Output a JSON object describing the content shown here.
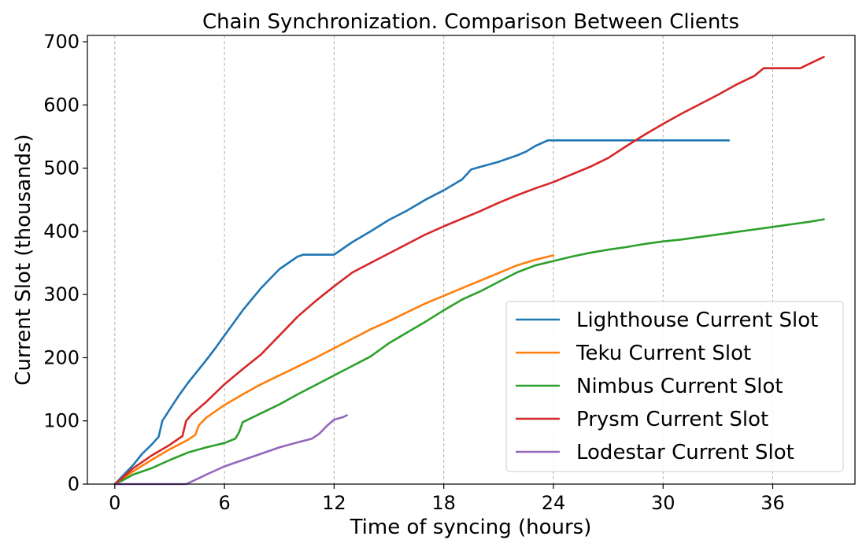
{
  "chart_data": {
    "type": "line",
    "title": "Chain Synchronization. Comparison Between Clients",
    "xlabel": "Time of syncing (hours)",
    "ylabel": "Current Slot (thousands)",
    "xlim": [
      -1.5,
      40.5
    ],
    "ylim": [
      0,
      710
    ],
    "xticks": [
      0,
      6,
      12,
      18,
      24,
      30,
      36
    ],
    "yticks": [
      0,
      100,
      200,
      300,
      400,
      500,
      600,
      700
    ],
    "grid": "vertical dashed",
    "legend_position": "lower-right",
    "series": [
      {
        "name": "Lighthouse Current Slot",
        "color": "#1f77b4",
        "points": [
          [
            0,
            0
          ],
          [
            0.5,
            15
          ],
          [
            1.0,
            30
          ],
          [
            1.5,
            48
          ],
          [
            2.0,
            62
          ],
          [
            2.4,
            75
          ],
          [
            2.6,
            100
          ],
          [
            3.0,
            118
          ],
          [
            3.5,
            140
          ],
          [
            4.0,
            160
          ],
          [
            4.5,
            178
          ],
          [
            5.0,
            196
          ],
          [
            5.5,
            215
          ],
          [
            6.0,
            235
          ],
          [
            7.0,
            275
          ],
          [
            8.0,
            310
          ],
          [
            9.0,
            340
          ],
          [
            10.0,
            360
          ],
          [
            10.3,
            363
          ],
          [
            12.0,
            363
          ],
          [
            12.5,
            373
          ],
          [
            13.0,
            383
          ],
          [
            14.0,
            400
          ],
          [
            15.0,
            418
          ],
          [
            16.0,
            433
          ],
          [
            17.0,
            450
          ],
          [
            18.0,
            465
          ],
          [
            19.0,
            482
          ],
          [
            19.5,
            498
          ],
          [
            20.0,
            502
          ],
          [
            21.0,
            510
          ],
          [
            22.0,
            520
          ],
          [
            22.5,
            526
          ],
          [
            23.0,
            535
          ],
          [
            23.7,
            544
          ],
          [
            26.0,
            544
          ],
          [
            30.0,
            544
          ],
          [
            33.6,
            544
          ]
        ]
      },
      {
        "name": "Teku Current Slot",
        "color": "#ff7f0e",
        "points": [
          [
            0,
            0
          ],
          [
            0.5,
            10
          ],
          [
            1.0,
            20
          ],
          [
            2.0,
            38
          ],
          [
            3.0,
            55
          ],
          [
            4.0,
            70
          ],
          [
            4.4,
            78
          ],
          [
            4.6,
            93
          ],
          [
            5.0,
            105
          ],
          [
            6.0,
            125
          ],
          [
            7.0,
            142
          ],
          [
            8.0,
            158
          ],
          [
            9.0,
            172
          ],
          [
            10.0,
            186
          ],
          [
            11.0,
            200
          ],
          [
            12.0,
            215
          ],
          [
            13.0,
            230
          ],
          [
            14.0,
            245
          ],
          [
            15.0,
            258
          ],
          [
            16.0,
            272
          ],
          [
            17.0,
            286
          ],
          [
            18.0,
            298
          ],
          [
            19.0,
            310
          ],
          [
            20.0,
            322
          ],
          [
            21.0,
            334
          ],
          [
            22.0,
            346
          ],
          [
            23.0,
            355
          ],
          [
            24.0,
            362
          ]
        ]
      },
      {
        "name": "Nimbus Current Slot",
        "color": "#2ca02c",
        "points": [
          [
            0,
            0
          ],
          [
            0.5,
            7
          ],
          [
            1.0,
            15
          ],
          [
            2.0,
            25
          ],
          [
            3.0,
            38
          ],
          [
            4.0,
            50
          ],
          [
            5.0,
            58
          ],
          [
            6.0,
            65
          ],
          [
            6.6,
            72
          ],
          [
            6.8,
            82
          ],
          [
            7.0,
            98
          ],
          [
            7.5,
            105
          ],
          [
            8.0,
            112
          ],
          [
            9.0,
            126
          ],
          [
            10.0,
            142
          ],
          [
            11.0,
            157
          ],
          [
            12.0,
            172
          ],
          [
            13.0,
            187
          ],
          [
            14.0,
            202
          ],
          [
            15.0,
            223
          ],
          [
            16.0,
            240
          ],
          [
            17.0,
            257
          ],
          [
            18.0,
            275
          ],
          [
            19.0,
            292
          ],
          [
            20.0,
            305
          ],
          [
            21.0,
            320
          ],
          [
            22.0,
            335
          ],
          [
            23.0,
            346
          ],
          [
            24.0,
            353
          ],
          [
            25.0,
            360
          ],
          [
            26.0,
            366
          ],
          [
            27.0,
            371
          ],
          [
            28.0,
            375
          ],
          [
            29.0,
            380
          ],
          [
            30.0,
            384
          ],
          [
            31.0,
            387
          ],
          [
            32.0,
            391
          ],
          [
            33.0,
            395
          ],
          [
            34.0,
            399
          ],
          [
            35.0,
            403
          ],
          [
            36.0,
            407
          ],
          [
            37.0,
            411
          ],
          [
            38.0,
            415
          ],
          [
            38.8,
            419
          ]
        ]
      },
      {
        "name": "Prysm Current Slot",
        "color": "#d62728",
        "points": [
          [
            0,
            0
          ],
          [
            0.5,
            12
          ],
          [
            1.0,
            25
          ],
          [
            2.0,
            45
          ],
          [
            3.0,
            62
          ],
          [
            3.7,
            76
          ],
          [
            3.9,
            100
          ],
          [
            4.2,
            110
          ],
          [
            5.0,
            130
          ],
          [
            6.0,
            158
          ],
          [
            7.0,
            182
          ],
          [
            8.0,
            205
          ],
          [
            9.0,
            235
          ],
          [
            10.0,
            265
          ],
          [
            11.0,
            290
          ],
          [
            12.0,
            313
          ],
          [
            13.0,
            335
          ],
          [
            14.0,
            350
          ],
          [
            15.0,
            365
          ],
          [
            16.0,
            380
          ],
          [
            17.0,
            395
          ],
          [
            18.0,
            408
          ],
          [
            19.0,
            420
          ],
          [
            20.0,
            432
          ],
          [
            21.0,
            445
          ],
          [
            22.0,
            457
          ],
          [
            23.0,
            468
          ],
          [
            24.0,
            478
          ],
          [
            25.0,
            490
          ],
          [
            26.0,
            502
          ],
          [
            27.0,
            516
          ],
          [
            28.0,
            535
          ],
          [
            29.0,
            553
          ],
          [
            30.0,
            570
          ],
          [
            31.0,
            586
          ],
          [
            32.0,
            601
          ],
          [
            33.0,
            616
          ],
          [
            34.0,
            632
          ],
          [
            35.0,
            646
          ],
          [
            35.5,
            658
          ],
          [
            37.5,
            658
          ],
          [
            38.0,
            665
          ],
          [
            38.8,
            676
          ]
        ]
      },
      {
        "name": "Lodestar Current Slot",
        "color": "#9467bd",
        "points": [
          [
            0,
            0
          ],
          [
            2.0,
            0
          ],
          [
            3.9,
            0
          ],
          [
            4.5,
            8
          ],
          [
            5.0,
            15
          ],
          [
            6.0,
            28
          ],
          [
            7.0,
            38
          ],
          [
            8.0,
            48
          ],
          [
            9.0,
            58
          ],
          [
            10.0,
            66
          ],
          [
            10.8,
            72
          ],
          [
            11.2,
            80
          ],
          [
            11.6,
            92
          ],
          [
            12.0,
            102
          ],
          [
            12.5,
            106
          ],
          [
            12.7,
            109
          ]
        ]
      }
    ]
  }
}
